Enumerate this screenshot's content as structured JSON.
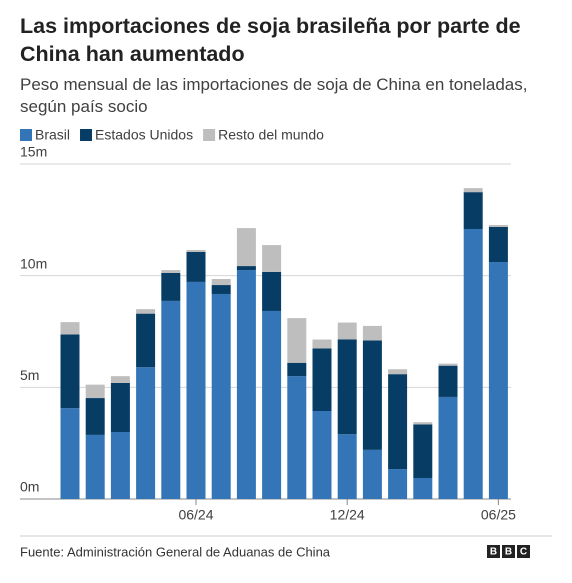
{
  "chart_data": {
    "type": "stacked_bar",
    "title": "Las importaciones de soja brasileña por parte de China han aumentado",
    "subtitle": "Peso mensual de las importaciones de soja de China en toneladas, según país socio",
    "categories": [
      null,
      null,
      null,
      null,
      null,
      "06/24",
      null,
      null,
      null,
      null,
      null,
      "12/24",
      null,
      null,
      null,
      null,
      null,
      "06/25"
    ],
    "series": [
      {
        "name": "Brasil",
        "color": "#3475b8",
        "values": [
          4070000,
          2870000,
          3000000,
          5900000,
          8870000,
          9720000,
          9180000,
          10250000,
          8420000,
          5500000,
          3940000,
          2900000,
          2200000,
          1340000,
          940000,
          4570000,
          12090000,
          10610000
        ]
      },
      {
        "name": "Estados Unidos",
        "color": "#073d65",
        "values": [
          3300000,
          1650000,
          2200000,
          2400000,
          1250000,
          1340000,
          400000,
          180000,
          1750000,
          600000,
          2800000,
          4250000,
          4900000,
          4250000,
          2400000,
          1400000,
          1650000,
          1570000
        ]
      },
      {
        "name": "Resto del mundo",
        "color": "#bebebe",
        "values": [
          550000,
          600000,
          300000,
          200000,
          130000,
          90000,
          270000,
          1700000,
          1200000,
          2000000,
          400000,
          750000,
          650000,
          220000,
          100000,
          90000,
          180000,
          90000
        ]
      }
    ],
    "ylim": [
      0,
      15000000
    ],
    "yticks": [
      {
        "value": 0,
        "label": "0m"
      },
      {
        "value": 5000000,
        "label": "5m"
      },
      {
        "value": 10000000,
        "label": "10m"
      },
      {
        "value": 15000000,
        "label": "15m"
      }
    ],
    "grid": true,
    "legend": "top",
    "source": "Fuente: Administración General de Aduanas de China",
    "logo": "BBC"
  }
}
